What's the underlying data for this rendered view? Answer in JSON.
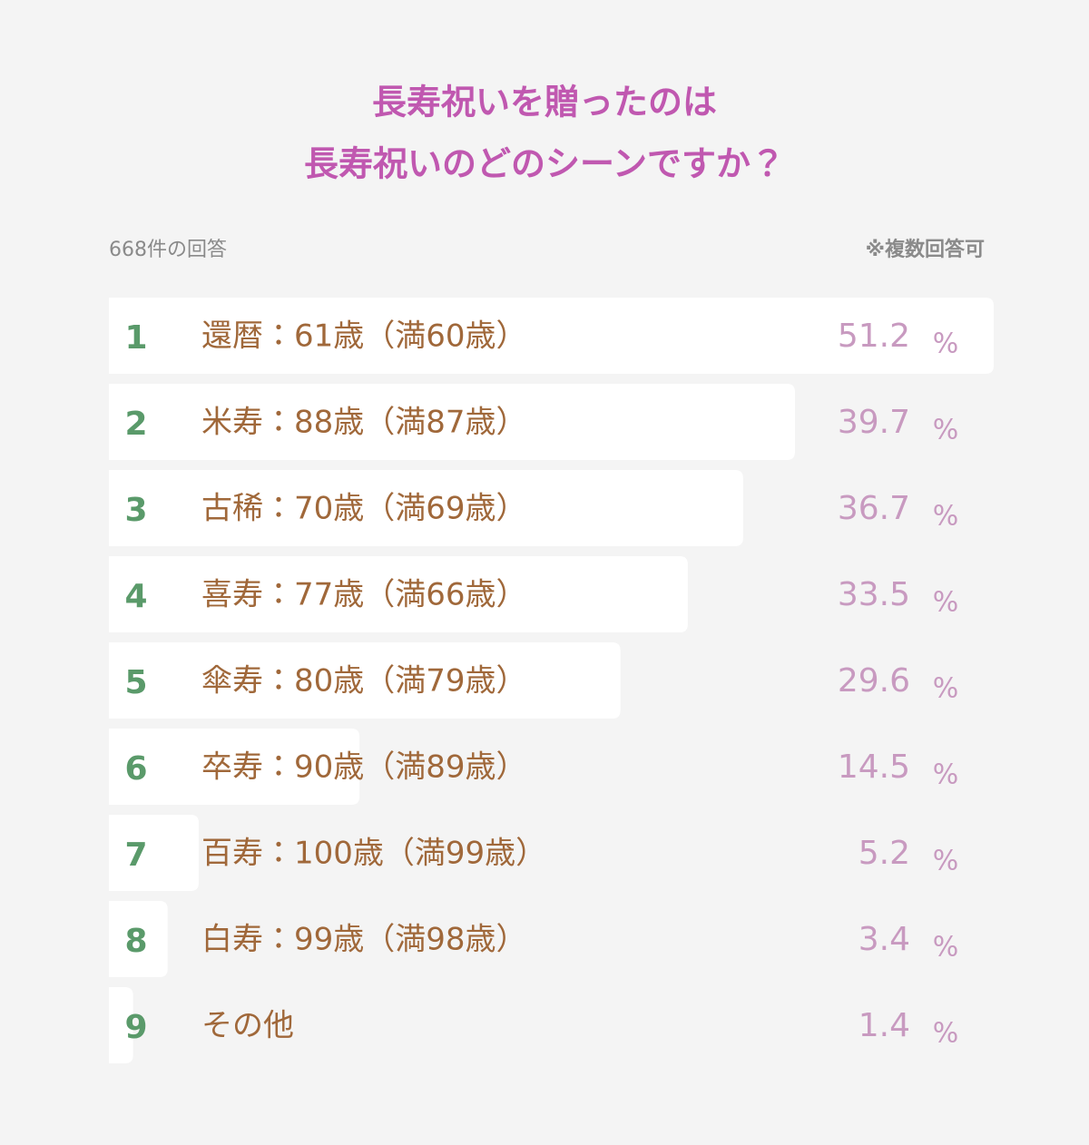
{
  "chart_data": {
    "type": "bar",
    "title": [
      "長寿祝いを贈ったのは",
      "長寿祝いのどのシーンですか？"
    ],
    "subtitle": "668件の回答",
    "note": "※複数回答可",
    "ranks": [
      1,
      2,
      3,
      4,
      5,
      6,
      7,
      8,
      9
    ],
    "categories": [
      "還暦：61歳（満60歳）",
      "米寿：88歳（満87歳）",
      "古稀：70歳（満69歳）",
      "喜寿：77歳（満66歳）",
      "傘寿：80歳（満79歳）",
      "卒寿：90歳（満89歳）",
      "百寿：100歳（満99歳）",
      "白寿：99歳（満98歳）",
      "その他"
    ],
    "values": [
      51.2,
      39.7,
      36.7,
      33.5,
      29.6,
      14.5,
      5.2,
      3.4,
      1.4
    ],
    "unit": "%",
    "color": "#ffffff"
  }
}
